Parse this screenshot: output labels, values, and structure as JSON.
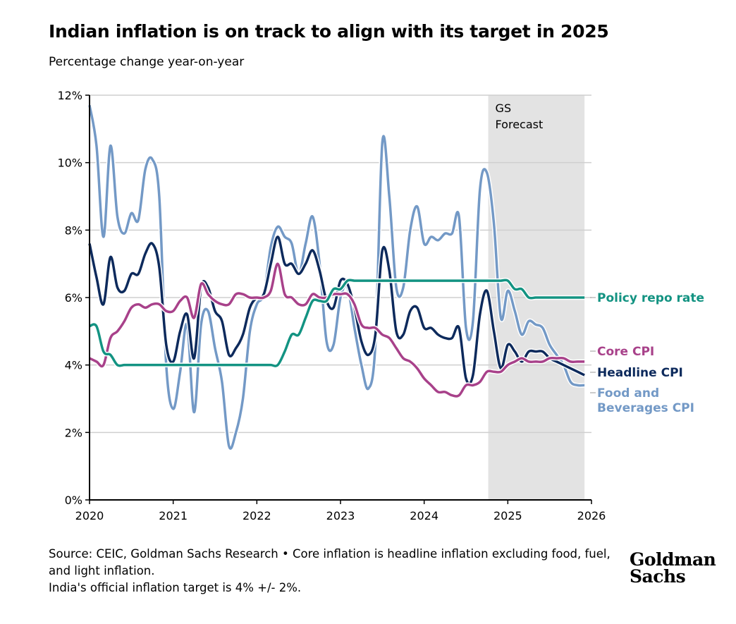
{
  "title": "Indian inflation is on track to align with its target in 2025",
  "subtitle": "Percentage change year-on-year",
  "source_lines": [
    "Source: CEIC, Goldman Sachs Research • Core inflation is headline inflation excluding food, fuel, and light inflation.",
    "India's official inflation target is 4% +/- 2%."
  ],
  "logo": [
    "Goldman",
    "Sachs"
  ],
  "chart_data": {
    "type": "line",
    "title": "Indian inflation is on track to align with its target in 2025",
    "ylabel": "Percentage change year-on-year",
    "xlim": [
      2020,
      2026
    ],
    "ylim": [
      0,
      12
    ],
    "x_ticks": [
      "2020",
      "2021",
      "2022",
      "2023",
      "2024",
      "2025",
      "2026"
    ],
    "y_ticks": [
      "0%",
      "2%",
      "4%",
      "6%",
      "8%",
      "10%",
      "12%"
    ],
    "grid": "horizontal",
    "x_start": "2020-01",
    "x_frequency": "monthly",
    "forecast_region": {
      "label_lines": [
        "GS",
        "Forecast"
      ],
      "from": "2024-11",
      "to": "2025-12",
      "color": "#e3e3e3"
    },
    "series": [
      {
        "name": "Food and Beverages CPI",
        "label_lines": [
          "Food and",
          "Beverages CPI"
        ],
        "color": "#7399c6",
        "values": [
          11.7,
          10.5,
          7.8,
          10.5,
          8.4,
          7.9,
          8.5,
          8.3,
          9.8,
          10.1,
          9.0,
          4.0,
          2.7,
          3.8,
          5.2,
          2.6,
          5.2,
          5.6,
          4.5,
          3.5,
          1.6,
          2.0,
          3.0,
          5.0,
          5.8,
          6.1,
          7.5,
          8.1,
          7.8,
          7.6,
          6.7,
          7.6,
          8.4,
          7.0,
          4.7,
          4.6,
          6.0,
          6.3,
          5.1,
          4.0,
          3.3,
          4.6,
          10.6,
          9.0,
          6.3,
          6.3,
          8.0,
          8.7,
          7.6,
          7.8,
          7.7,
          7.9,
          7.9,
          8.4,
          5.1,
          5.3,
          9.2,
          9.7,
          8.2,
          5.4,
          6.2,
          5.6,
          4.9,
          5.3,
          5.2,
          5.1,
          4.6,
          4.3,
          4.0,
          3.5,
          3.4,
          3.4
        ]
      },
      {
        "name": "Headline CPI",
        "label_lines": [
          "Headline CPI"
        ],
        "color": "#0d2a5c",
        "values": [
          7.6,
          6.6,
          5.8,
          7.2,
          6.3,
          6.2,
          6.7,
          6.7,
          7.3,
          7.6,
          6.9,
          4.6,
          4.1,
          5.0,
          5.5,
          4.2,
          6.3,
          6.3,
          5.6,
          5.3,
          4.3,
          4.5,
          4.9,
          5.7,
          6.0,
          6.1,
          7.0,
          7.8,
          7.0,
          7.0,
          6.7,
          7.0,
          7.4,
          6.8,
          5.9,
          5.7,
          6.5,
          6.4,
          5.7,
          4.7,
          4.3,
          4.9,
          7.4,
          6.8,
          5.0,
          4.9,
          5.6,
          5.7,
          5.1,
          5.1,
          4.9,
          4.8,
          4.8,
          5.1,
          3.6,
          3.7,
          5.5,
          6.2,
          5.0,
          3.9,
          4.6,
          4.4,
          4.1,
          4.4,
          4.4,
          4.4,
          4.2,
          4.1,
          4.0,
          3.9,
          3.8,
          3.7
        ]
      },
      {
        "name": "Core CPI",
        "label_lines": [
          "Core CPI"
        ],
        "color": "#a8418a",
        "values": [
          4.2,
          4.1,
          4.0,
          4.8,
          5.0,
          5.3,
          5.7,
          5.8,
          5.7,
          5.8,
          5.8,
          5.6,
          5.6,
          5.9,
          6.0,
          5.4,
          6.4,
          6.1,
          5.9,
          5.8,
          5.8,
          6.1,
          6.1,
          6.0,
          6.0,
          6.0,
          6.2,
          7.0,
          6.1,
          6.0,
          5.8,
          5.8,
          6.1,
          6.0,
          6.0,
          6.1,
          6.1,
          6.1,
          5.8,
          5.2,
          5.1,
          5.1,
          4.9,
          4.8,
          4.5,
          4.2,
          4.1,
          3.9,
          3.6,
          3.4,
          3.2,
          3.2,
          3.1,
          3.1,
          3.4,
          3.4,
          3.5,
          3.8,
          3.8,
          3.8,
          4.0,
          4.1,
          4.2,
          4.1,
          4.1,
          4.1,
          4.2,
          4.2,
          4.2,
          4.1,
          4.1,
          4.1
        ]
      },
      {
        "name": "Policy repo rate",
        "label_lines": [
          "Policy repo rate"
        ],
        "color": "#139382",
        "values": [
          5.15,
          5.15,
          4.4,
          4.3,
          4.0,
          4.0,
          4.0,
          4.0,
          4.0,
          4.0,
          4.0,
          4.0,
          4.0,
          4.0,
          4.0,
          4.0,
          4.0,
          4.0,
          4.0,
          4.0,
          4.0,
          4.0,
          4.0,
          4.0,
          4.0,
          4.0,
          4.0,
          4.0,
          4.4,
          4.9,
          4.9,
          5.4,
          5.9,
          5.9,
          5.9,
          6.25,
          6.25,
          6.5,
          6.5,
          6.5,
          6.5,
          6.5,
          6.5,
          6.5,
          6.5,
          6.5,
          6.5,
          6.5,
          6.5,
          6.5,
          6.5,
          6.5,
          6.5,
          6.5,
          6.5,
          6.5,
          6.5,
          6.5,
          6.5,
          6.5,
          6.5,
          6.25,
          6.25,
          6.0,
          6.0,
          6.0,
          6.0,
          6.0,
          6.0,
          6.0,
          6.0,
          6.0
        ]
      }
    ]
  }
}
